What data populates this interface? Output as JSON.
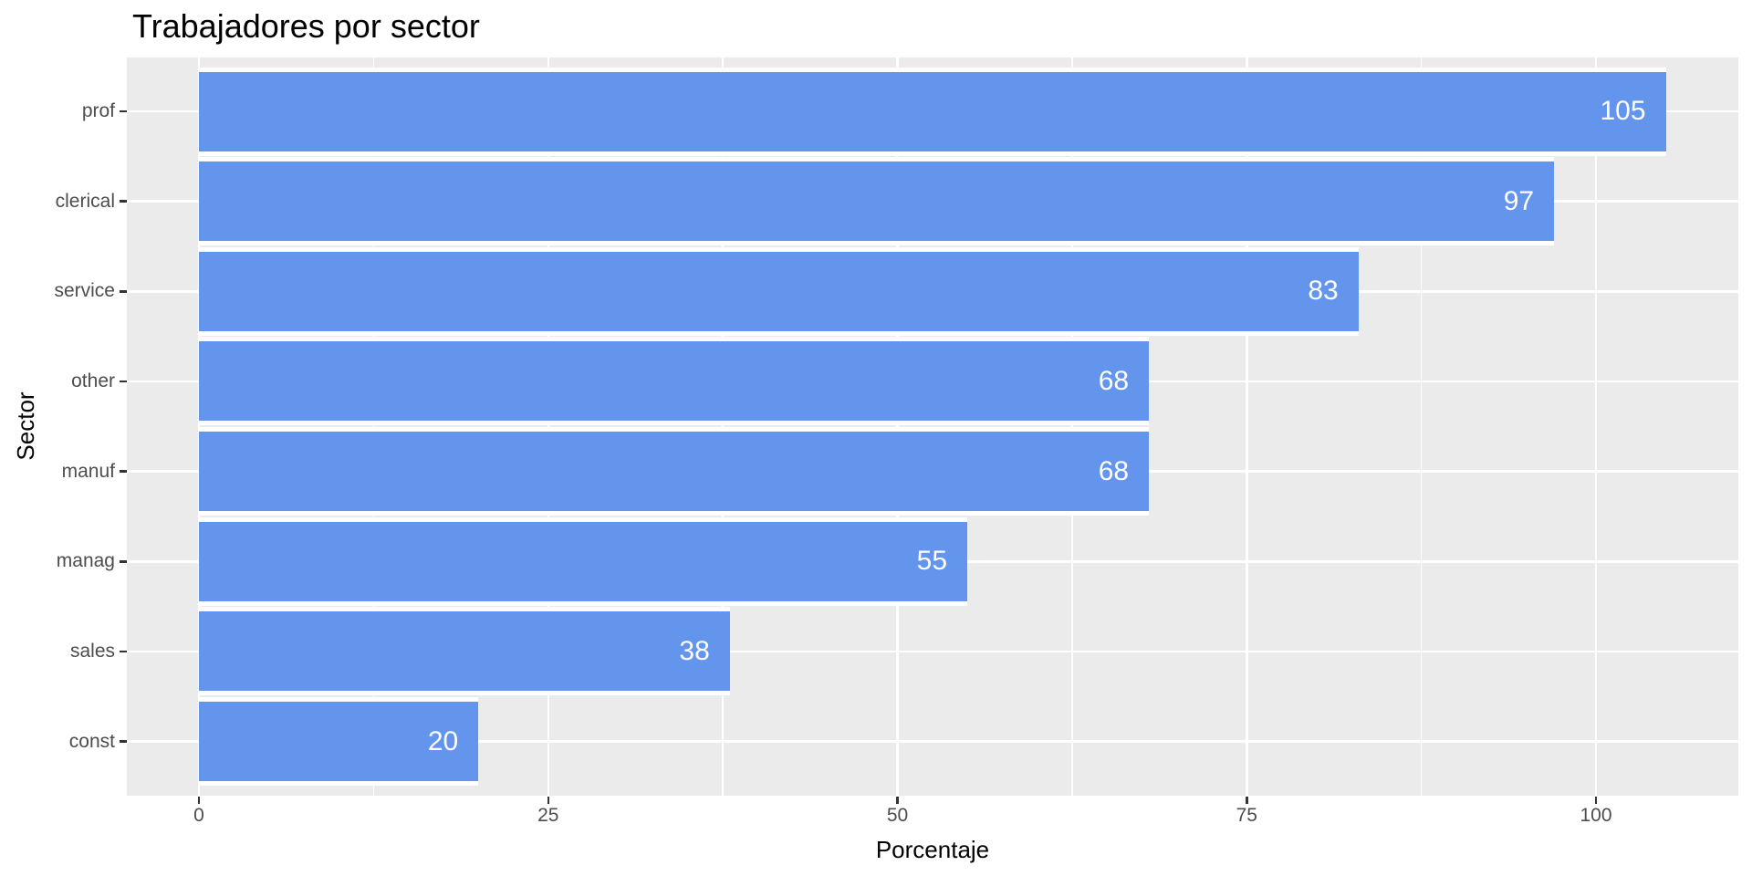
{
  "chart_data": {
    "type": "bar",
    "orientation": "horizontal",
    "title": "Trabajadores por sector",
    "xlabel": "Porcentaje",
    "ylabel": "Sector",
    "categories": [
      "prof",
      "clerical",
      "service",
      "other",
      "manuf",
      "manag",
      "sales",
      "const"
    ],
    "values": [
      105,
      97,
      83,
      68,
      68,
      55,
      38,
      20
    ],
    "bar_value_labels": [
      "105",
      "97",
      "83",
      "68",
      "68",
      "55",
      "38",
      "20"
    ],
    "x_ticks": [
      0,
      25,
      50,
      75,
      100
    ],
    "x_tick_labels": [
      "0",
      "25",
      "50",
      "75",
      "100"
    ],
    "x_minor_ticks": [
      12.5,
      37.5,
      62.5,
      87.5
    ],
    "xlim": [
      -5.25,
      110.25
    ],
    "grid": "white major and minor vertical, white major horizontal",
    "legend": false,
    "colors": {
      "bar_fill": "#6495ED",
      "panel_background": "#EBEBEB",
      "gridline": "#FFFFFF",
      "tick_mark": "#333333",
      "tick_label_text": "#4D4D4D",
      "title_text": "#000000",
      "bar_label_text": "#FFFFFF",
      "figure_background": "#FFFFFF"
    }
  }
}
